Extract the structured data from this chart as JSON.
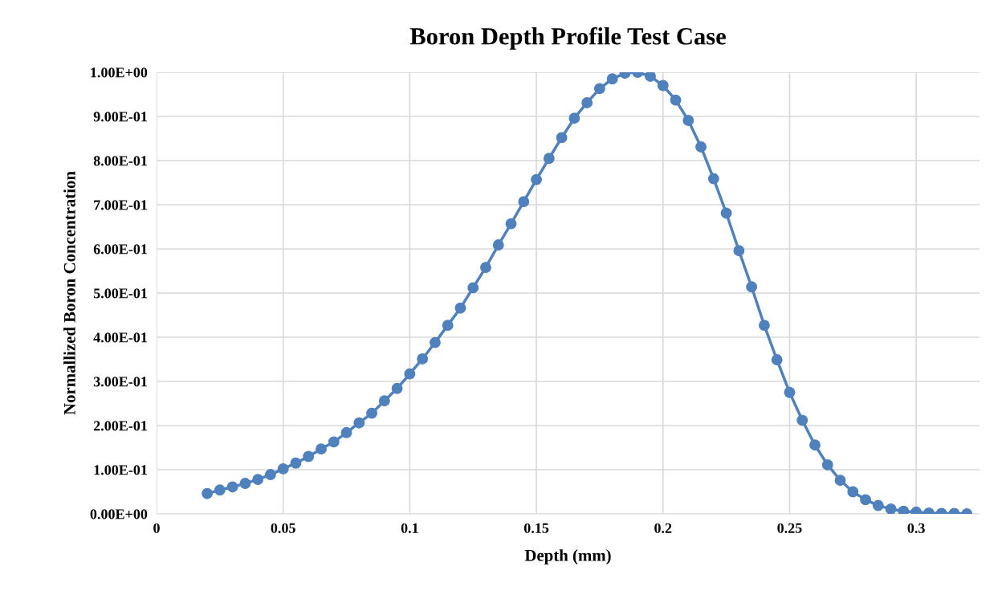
{
  "chart_data": {
    "type": "line",
    "title": "Boron Depth Profile Test Case",
    "xlabel": "Depth (mm)",
    "ylabel": "Normallized Boron Concentration",
    "x": [
      0.02,
      0.025,
      0.03,
      0.035,
      0.04,
      0.045,
      0.05,
      0.055,
      0.06,
      0.065,
      0.07,
      0.075,
      0.08,
      0.085,
      0.09,
      0.095,
      0.1,
      0.105,
      0.11,
      0.115,
      0.12,
      0.125,
      0.13,
      0.135,
      0.14,
      0.145,
      0.15,
      0.155,
      0.16,
      0.165,
      0.17,
      0.175,
      0.18,
      0.185,
      0.19,
      0.195,
      0.2,
      0.205,
      0.21,
      0.215,
      0.22,
      0.225,
      0.23,
      0.235,
      0.24,
      0.245,
      0.25,
      0.255,
      0.26,
      0.265,
      0.27,
      0.275,
      0.28,
      0.285,
      0.29,
      0.295,
      0.3,
      0.305,
      0.31,
      0.315,
      0.32
    ],
    "series": [
      {
        "color": "#4f81bd",
        "values": [
          0.046,
          0.054,
          0.061,
          0.069,
          0.078,
          0.089,
          0.102,
          0.115,
          0.13,
          0.147,
          0.163,
          0.184,
          0.206,
          0.228,
          0.256,
          0.284,
          0.317,
          0.351,
          0.388,
          0.427,
          0.466,
          0.512,
          0.558,
          0.609,
          0.657,
          0.707,
          0.757,
          0.805,
          0.852,
          0.896,
          0.931,
          0.963,
          0.985,
          0.998,
          1.0,
          0.991,
          0.97,
          0.937,
          0.891,
          0.831,
          0.759,
          0.681,
          0.596,
          0.514,
          0.427,
          0.349,
          0.275,
          0.212,
          0.156,
          0.111,
          0.076,
          0.05,
          0.032,
          0.019,
          0.011,
          0.006,
          0.004,
          0.002,
          0.001,
          0.001,
          0.0
        ]
      }
    ],
    "xlim": [
      0,
      0.325
    ],
    "xticks": [
      0,
      0.05,
      0.1,
      0.15,
      0.2,
      0.25,
      0.3
    ],
    "ylim": [
      0,
      1.0
    ],
    "yticks": [
      {
        "value": 0,
        "label": "0.00E+00"
      },
      {
        "value": 0.1,
        "label": "1.00E-01"
      },
      {
        "value": 0.2,
        "label": "2.00E-01"
      },
      {
        "value": 0.3,
        "label": "3.00E-01"
      },
      {
        "value": 0.4,
        "label": "4.00E-01"
      },
      {
        "value": 0.5,
        "label": "5.00E-01"
      },
      {
        "value": 0.6,
        "label": "6.00E-01"
      },
      {
        "value": 0.7,
        "label": "7.00E-01"
      },
      {
        "value": 0.8,
        "label": "8.00E-01"
      },
      {
        "value": 0.9,
        "label": "9.00E-01"
      },
      {
        "value": 1.0,
        "label": "1.00E+00"
      }
    ],
    "grid": true,
    "marker": "circle",
    "line_style": "solid"
  }
}
